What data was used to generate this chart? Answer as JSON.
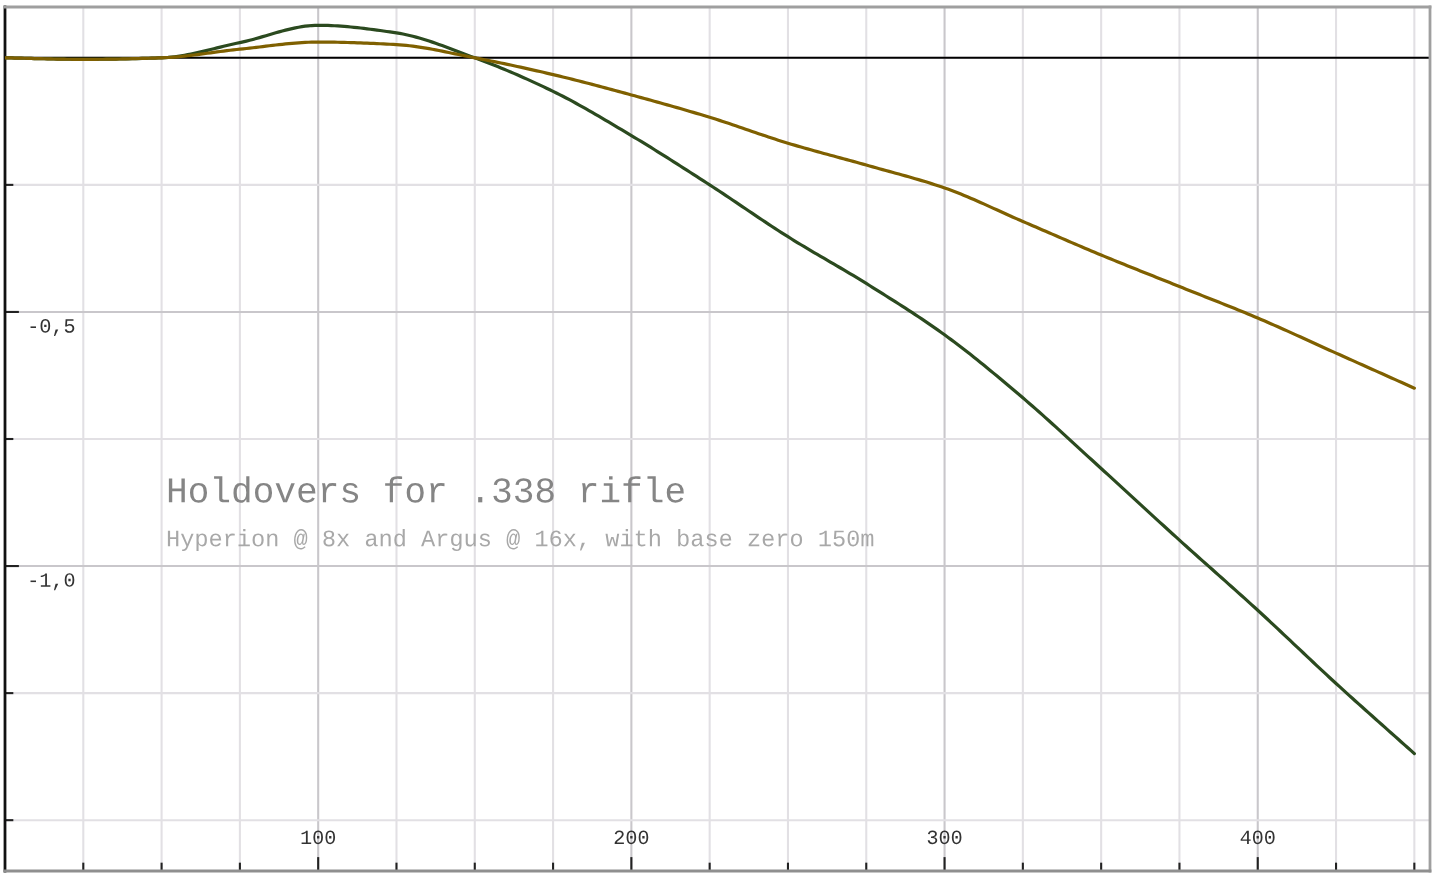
{
  "chart_data": {
    "type": "line",
    "title": "Holdovers for .338 rifle",
    "subtitle": "Hyperion @ 8x and Argus @ 16x, with base zero 150m",
    "x": [
      0,
      25,
      50,
      75,
      100,
      125,
      150,
      175,
      200,
      225,
      250,
      275,
      300,
      325,
      350,
      375,
      400,
      425,
      450
    ],
    "series": [
      {
        "color": "#2b4a1f",
        "values": [
          0,
          -0.003,
          0,
          0.03,
          0.064,
          0.049,
          0,
          -0.066,
          -0.153,
          -0.25,
          -0.352,
          -0.444,
          -0.545,
          -0.669,
          -0.808,
          -0.949,
          -1.087,
          -1.231,
          -1.369
        ]
      },
      {
        "color": "#7f6000",
        "values": [
          0,
          -0.003,
          0,
          0.017,
          0.031,
          0.026,
          0,
          -0.033,
          -0.073,
          -0.117,
          -0.168,
          -0.211,
          -0.256,
          -0.322,
          -0.388,
          -0.45,
          -0.512,
          -0.581,
          -0.65
        ]
      }
    ],
    "xlim": [
      0,
      455
    ],
    "ylim": [
      -1.6,
      0.1
    ],
    "xticks": [
      {
        "value": 25,
        "label": null
      },
      {
        "value": 50,
        "label": null
      },
      {
        "value": 75,
        "label": null
      },
      100,
      {
        "value": 125,
        "label": null
      },
      {
        "value": 150,
        "label": null
      },
      {
        "value": 175,
        "label": null
      },
      200,
      {
        "value": 225,
        "label": null
      },
      {
        "value": 250,
        "label": null
      },
      {
        "value": 275,
        "label": null
      },
      300,
      {
        "value": 325,
        "label": null
      },
      {
        "value": 350,
        "label": null
      },
      {
        "value": 375,
        "label": null
      },
      400,
      {
        "value": 425,
        "label": null
      },
      {
        "value": 450,
        "label": null
      }
    ],
    "yticks": [
      {
        "value": 0,
        "label": null
      },
      {
        "value": -0.25,
        "label": null
      },
      {
        "value": -0.5,
        "label": "-0,5"
      },
      {
        "value": -0.75,
        "label": null
      },
      {
        "value": -1.0,
        "label": "-1,0"
      },
      {
        "value": -1.25,
        "label": null
      },
      {
        "value": -1.5,
        "label": null
      }
    ],
    "grid": true,
    "ref_lines": [
      {
        "axis": "y",
        "value": 0,
        "color": "#000000"
      }
    ]
  }
}
